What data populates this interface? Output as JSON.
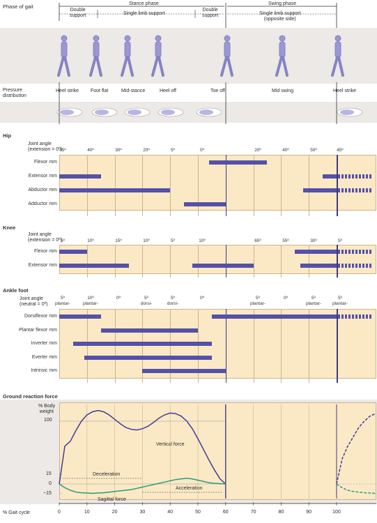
{
  "phase": {
    "title": "Phase of gait",
    "stance": "Stance phase",
    "swing": "Swing phase",
    "double_support_1": [
      "Double",
      "support"
    ],
    "single_limb": "Single limb support",
    "double_support_2": [
      "Double",
      "support"
    ],
    "single_limb_opp": [
      "Single limb support",
      "(opposite side)"
    ]
  },
  "pressure": {
    "title": [
      "Pressure",
      "distribution"
    ],
    "events": [
      "Heel strike",
      "Foot flat",
      "Mid-stance",
      "Heel off",
      "Toe off",
      "Mid swing",
      "Heel strike"
    ]
  },
  "hip": {
    "title": "Hip",
    "angle_label": [
      "Joint angle",
      "(extension = 0º)"
    ],
    "angles": [
      "45º",
      "40º",
      "30º",
      "20º",
      "5º",
      "0º",
      "20º",
      "40º",
      "50º",
      "45º"
    ],
    "muscles": [
      "Flexor mm",
      "Extensor mm",
      "Abductor mm",
      "Adductor mm"
    ]
  },
  "knee": {
    "title": "Knee",
    "angle_label": [
      "Joint angle",
      "(extension = 0º)"
    ],
    "angles": [
      "5º",
      "10º",
      "15º",
      "10º",
      "5º",
      "10º",
      "65º",
      "55º",
      "30º",
      "5º"
    ],
    "muscles": [
      "Flexor mm",
      "Extensor mm"
    ]
  },
  "ankle": {
    "title": "Ankle foot",
    "angle_label": [
      "Joint angle",
      "(neutral = 0º)"
    ],
    "angles": [
      [
        "5º",
        "plantar-"
      ],
      [
        "10º",
        "plantar-"
      ],
      [
        "0º",
        ""
      ],
      [
        "5º",
        "dorsi-"
      ],
      [
        "5º",
        "dorsi-"
      ],
      [
        "0º",
        ""
      ],
      [
        "5º",
        "plantar-"
      ],
      [
        "0º",
        ""
      ],
      [
        "5º",
        "plantar-"
      ],
      [
        "5º",
        "plantar-"
      ]
    ],
    "muscles": [
      "Dorsiflexor mm",
      "Plantar flexor mm",
      "Inverter mm",
      "Everter mm",
      "Intrinsic mm"
    ]
  },
  "grf": {
    "title": "Ground reaction force",
    "ylabel": [
      "% Body",
      "weight"
    ],
    "yticks": [
      "100",
      "15",
      "0",
      "−15"
    ],
    "xlabel": "% Gait cycle",
    "xticks": [
      "0",
      "10",
      "20",
      "30",
      "40",
      "50",
      "60",
      "70",
      "80",
      "90",
      "100"
    ],
    "vertical_label": "Vertical force",
    "sagittal_label": "Sagittal force",
    "decel_label": "Deceleration",
    "accel_label": "Acceleration"
  },
  "chart_data": {
    "type": "line",
    "xlabel": "% Gait cycle",
    "xlim": [
      0,
      100
    ],
    "ylim": [
      -20,
      120
    ],
    "series": [
      {
        "name": "Vertical force",
        "x": [
          0,
          2,
          4,
          6,
          8,
          10,
          12,
          14,
          16,
          18,
          20,
          22,
          24,
          26,
          28,
          30,
          32,
          34,
          36,
          38,
          40,
          42,
          44,
          46,
          48,
          50,
          52,
          54,
          56,
          58,
          60
        ],
        "y": [
          0,
          60,
          68,
          85,
          100,
          110,
          115,
          117,
          115,
          110,
          103,
          96,
          90,
          87,
          86,
          88,
          92,
          98,
          105,
          110,
          113,
          112,
          108,
          100,
          88,
          72,
          55,
          38,
          22,
          8,
          0
        ]
      },
      {
        "name": "Sagittal force",
        "x": [
          0,
          2,
          4,
          6,
          8,
          10,
          12,
          14,
          16,
          18,
          20,
          22,
          24,
          26,
          28,
          30,
          32,
          34,
          36,
          38,
          40,
          42,
          44,
          46,
          48,
          50,
          52,
          54,
          56,
          58,
          60
        ],
        "y": [
          0,
          -6,
          -10,
          -13,
          -14,
          -14.5,
          -15,
          -14.5,
          -14,
          -13,
          -12,
          -11,
          -10,
          -9,
          -7,
          -5,
          -3,
          -1,
          1,
          3,
          5,
          7,
          8,
          9,
          8,
          6,
          4,
          2,
          1,
          0.5,
          0
        ]
      }
    ],
    "opposite_side": [
      {
        "name": "Vertical force (next cycle)",
        "x": [
          100,
          102,
          104,
          106,
          108,
          110,
          112,
          114
        ],
        "y": [
          0,
          40,
          60,
          75,
          90,
          100,
          108,
          112
        ]
      },
      {
        "name": "Sagittal force (next cycle)",
        "x": [
          100,
          102,
          104,
          106,
          108,
          110,
          112,
          114
        ],
        "y": [
          0,
          -6,
          -10,
          -12,
          -13,
          -14,
          -14.5,
          -15
        ]
      }
    ]
  }
}
